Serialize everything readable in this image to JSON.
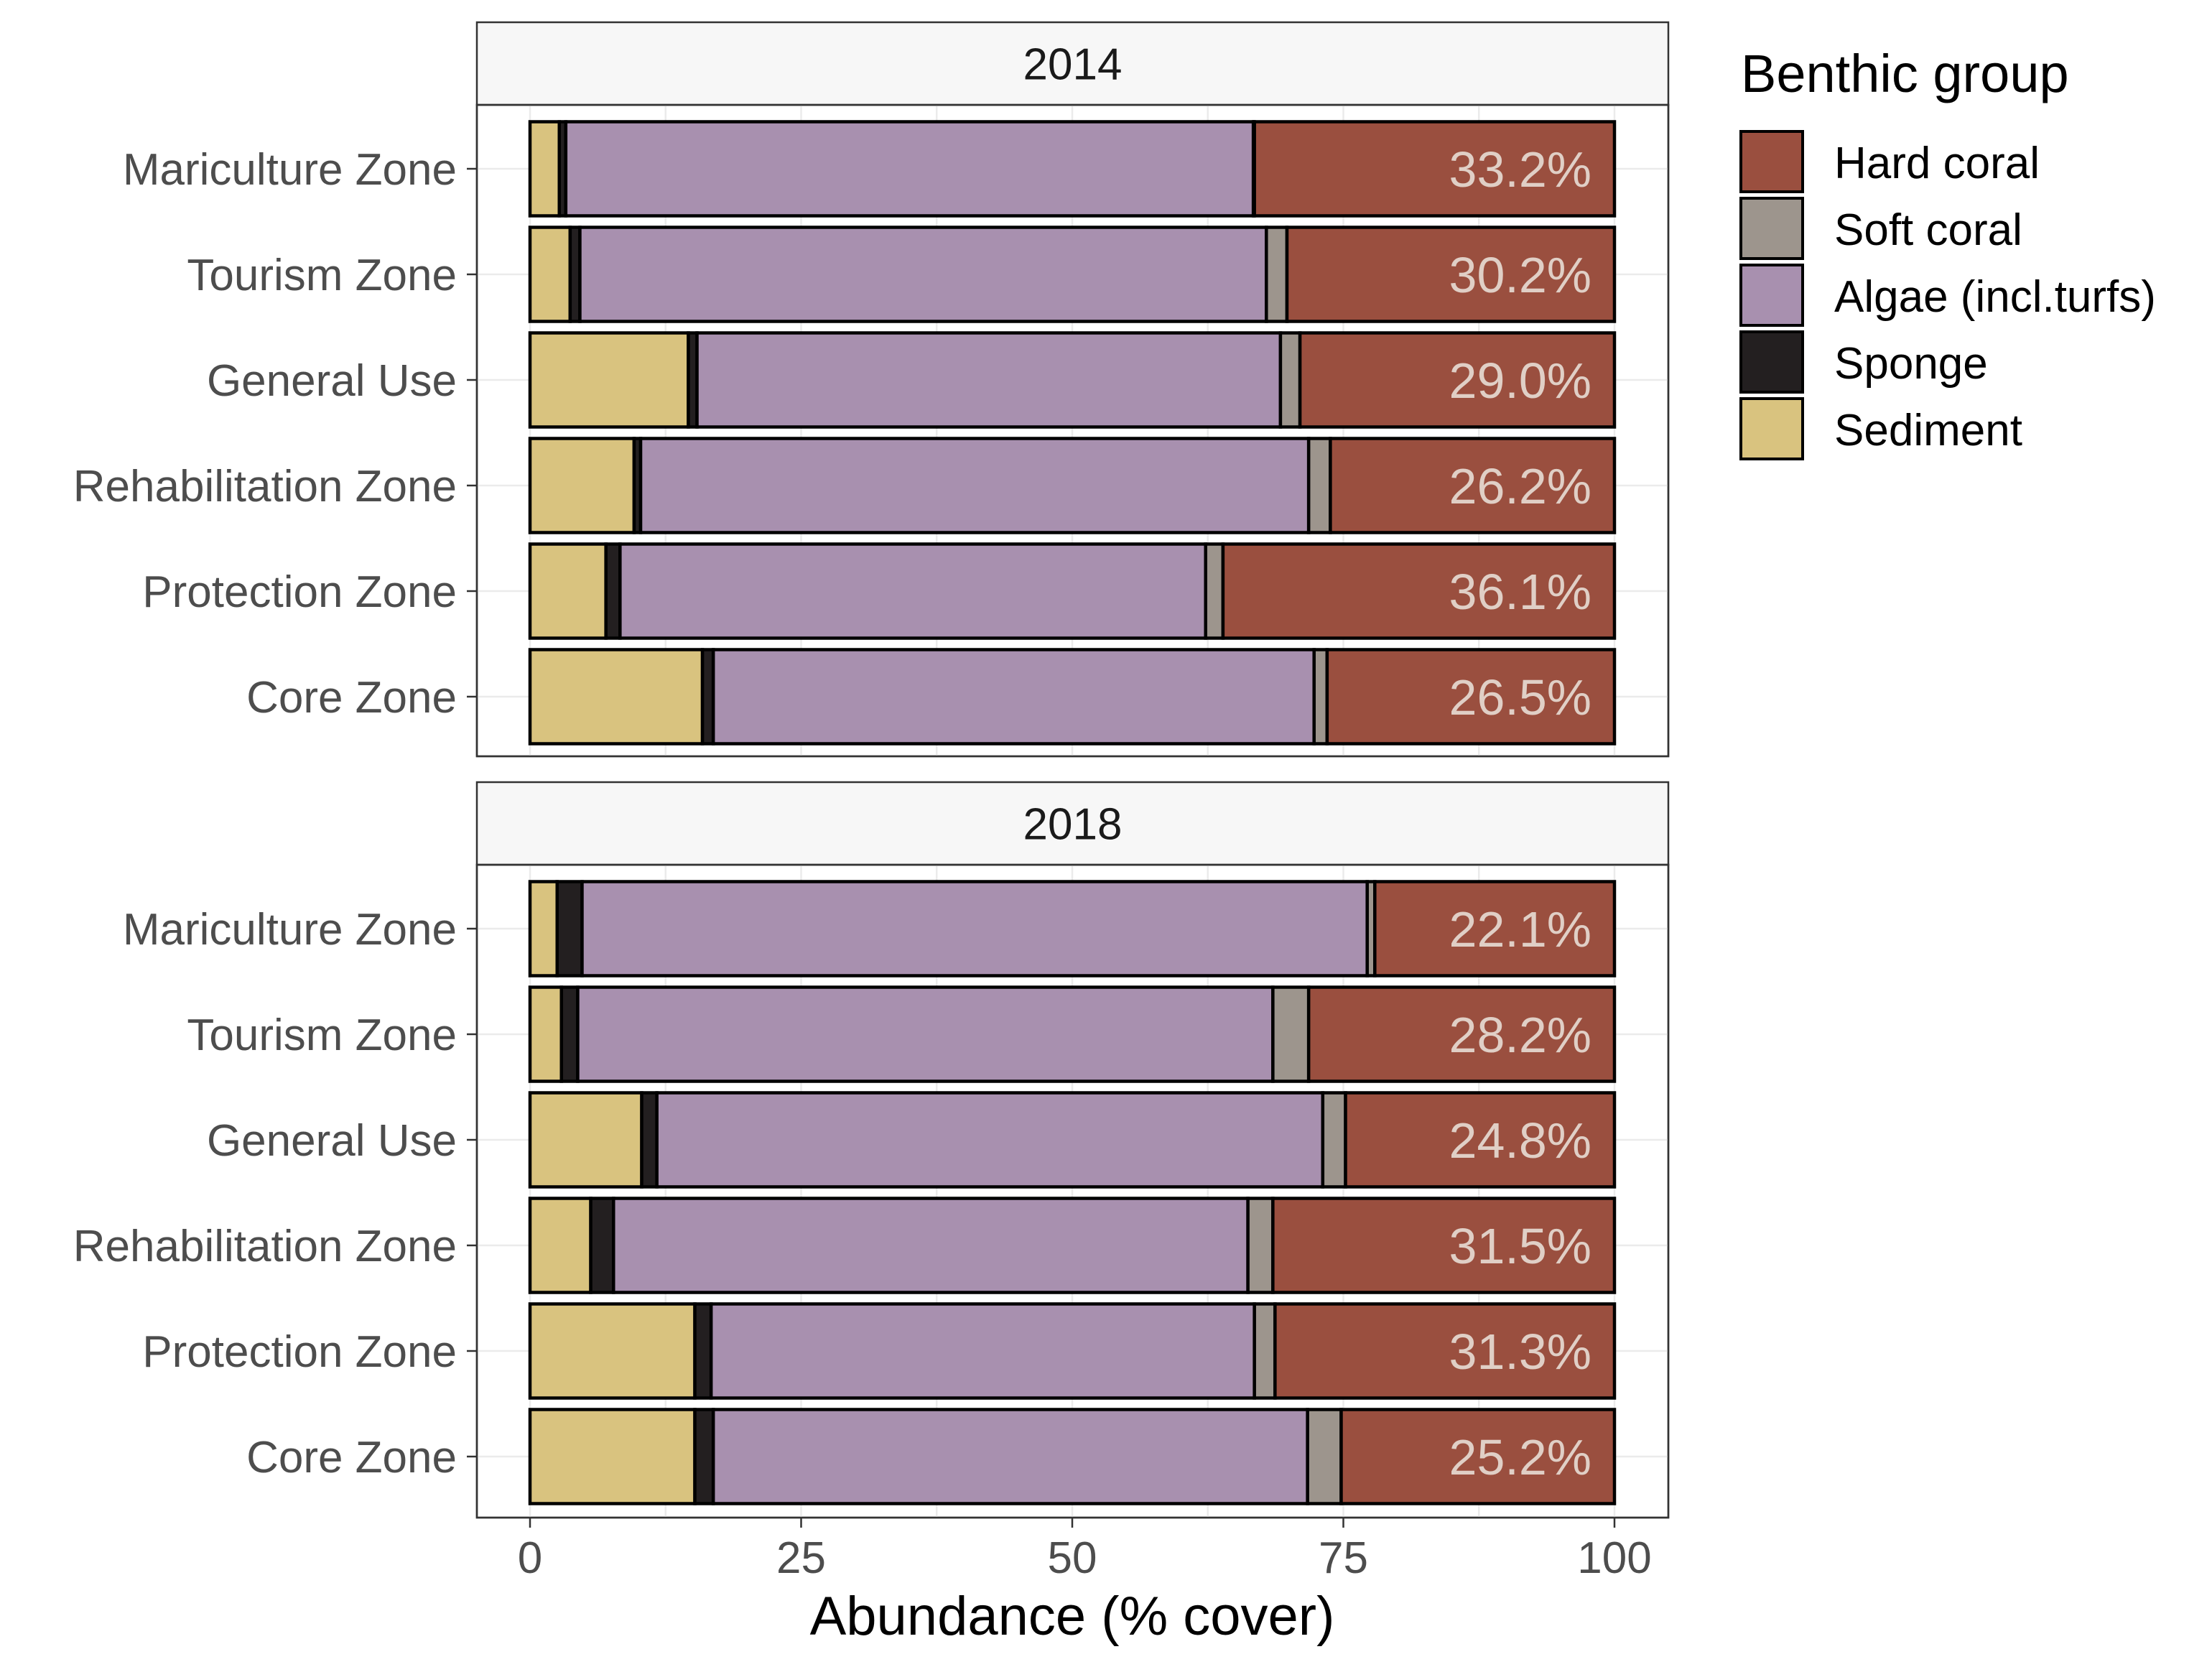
{
  "chart_data": {
    "type": "bar",
    "orientation": "horizontal",
    "stacked": true,
    "xlabel": "Abundance (% cover)",
    "ylabel": "",
    "xlim": [
      0,
      100
    ],
    "x_ticks": [
      0,
      25,
      50,
      75,
      100
    ],
    "grid": true,
    "legend": {
      "title": "Benthic group",
      "position": "right",
      "entries": [
        "Hard coral",
        "Soft coral",
        "Algae (incl.turfs)",
        "Sponge",
        "Sediment"
      ]
    },
    "colors": {
      "Hard coral": "#9a4f3f",
      "Soft coral": "#9d958d",
      "Algae (incl.turfs)": "#a890af",
      "Sponge": "#231f20",
      "Sediment": "#d9c37f"
    },
    "stack_order": [
      "Sediment",
      "Sponge",
      "Algae (incl.turfs)",
      "Soft coral",
      "Hard coral"
    ],
    "categories": [
      "Mariculture Zone",
      "Tourism Zone",
      "General Use",
      "Rehabilitation Zone",
      "Protection Zone",
      "Core Zone"
    ],
    "panels": [
      {
        "label": "2014",
        "rows": [
          {
            "category": "Mariculture Zone",
            "Sediment": 2.7,
            "Sponge": 0.6,
            "Algae (incl.turfs)": 63.4,
            "Soft coral": 0.1,
            "Hard coral": 33.2,
            "label": "33.2%"
          },
          {
            "category": "Tourism Zone",
            "Sediment": 3.7,
            "Sponge": 0.9,
            "Algae (incl.turfs)": 63.3,
            "Soft coral": 1.9,
            "Hard coral": 30.2,
            "label": "30.2%"
          },
          {
            "category": "General Use",
            "Sediment": 14.6,
            "Sponge": 0.8,
            "Algae (incl.turfs)": 53.8,
            "Soft coral": 1.8,
            "Hard coral": 29.0,
            "label": "29.0%"
          },
          {
            "category": "Rehabilitation Zone",
            "Sediment": 9.6,
            "Sponge": 0.6,
            "Algae (incl.turfs)": 61.6,
            "Soft coral": 2.0,
            "Hard coral": 26.2,
            "label": "26.2%"
          },
          {
            "category": "Protection Zone",
            "Sediment": 7.0,
            "Sponge": 1.3,
            "Algae (incl.turfs)": 54.0,
            "Soft coral": 1.6,
            "Hard coral": 36.1,
            "label": "36.1%"
          },
          {
            "category": "Core Zone",
            "Sediment": 15.9,
            "Sponge": 1.0,
            "Algae (incl.turfs)": 55.4,
            "Soft coral": 1.2,
            "Hard coral": 26.5,
            "label": "26.5%"
          }
        ]
      },
      {
        "label": "2018",
        "rows": [
          {
            "category": "Mariculture Zone",
            "Sediment": 2.5,
            "Sponge": 2.3,
            "Algae (incl.turfs)": 72.4,
            "Soft coral": 0.7,
            "Hard coral": 22.1,
            "label": "22.1%"
          },
          {
            "category": "Tourism Zone",
            "Sediment": 2.9,
            "Sponge": 1.5,
            "Algae (incl.turfs)": 64.1,
            "Soft coral": 3.3,
            "Hard coral": 28.2,
            "label": "28.2%"
          },
          {
            "category": "General Use",
            "Sediment": 10.3,
            "Sponge": 1.4,
            "Algae (incl.turfs)": 61.4,
            "Soft coral": 2.1,
            "Hard coral": 24.8,
            "label": "24.8%"
          },
          {
            "category": "Rehabilitation Zone",
            "Sediment": 5.6,
            "Sponge": 2.1,
            "Algae (incl.turfs)": 58.5,
            "Soft coral": 2.3,
            "Hard coral": 31.5,
            "label": "31.5%"
          },
          {
            "category": "Protection Zone",
            "Sediment": 15.2,
            "Sponge": 1.5,
            "Algae (incl.turfs)": 50.1,
            "Soft coral": 1.9,
            "Hard coral": 31.3,
            "label": "31.3%"
          },
          {
            "category": "Core Zone",
            "Sediment": 15.2,
            "Sponge": 1.7,
            "Algae (incl.turfs)": 54.8,
            "Soft coral": 3.1,
            "Hard coral": 25.2,
            "label": "25.2%"
          }
        ]
      }
    ]
  }
}
